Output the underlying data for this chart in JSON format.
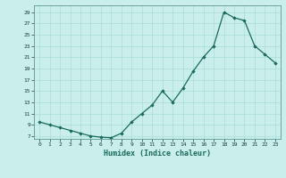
{
  "x": [
    0,
    1,
    2,
    3,
    4,
    5,
    6,
    7,
    8,
    9,
    10,
    11,
    12,
    13,
    14,
    15,
    16,
    17,
    18,
    19,
    20,
    21,
    22,
    23
  ],
  "y": [
    9.5,
    9.0,
    8.5,
    8.0,
    7.5,
    7.0,
    6.8,
    6.7,
    7.5,
    9.5,
    11.0,
    12.5,
    15.0,
    13.0,
    15.5,
    18.5,
    21.0,
    23.0,
    29.0,
    28.0,
    27.5,
    23.0,
    21.5,
    20.0
  ],
  "bg_color": "#c9eeeb",
  "grid_color": "#a8ddd5",
  "line_color": "#1a6b5a",
  "marker_color": "#1a6b5a",
  "xlabel": "Humidex (Indice chaleur)",
  "yticks": [
    7,
    9,
    11,
    13,
    15,
    17,
    19,
    21,
    23,
    25,
    27,
    29
  ],
  "xlim": [
    -0.5,
    23.5
  ],
  "ylim": [
    6.5,
    30.2
  ],
  "figwidth": 3.2,
  "figheight": 2.0,
  "dpi": 100
}
